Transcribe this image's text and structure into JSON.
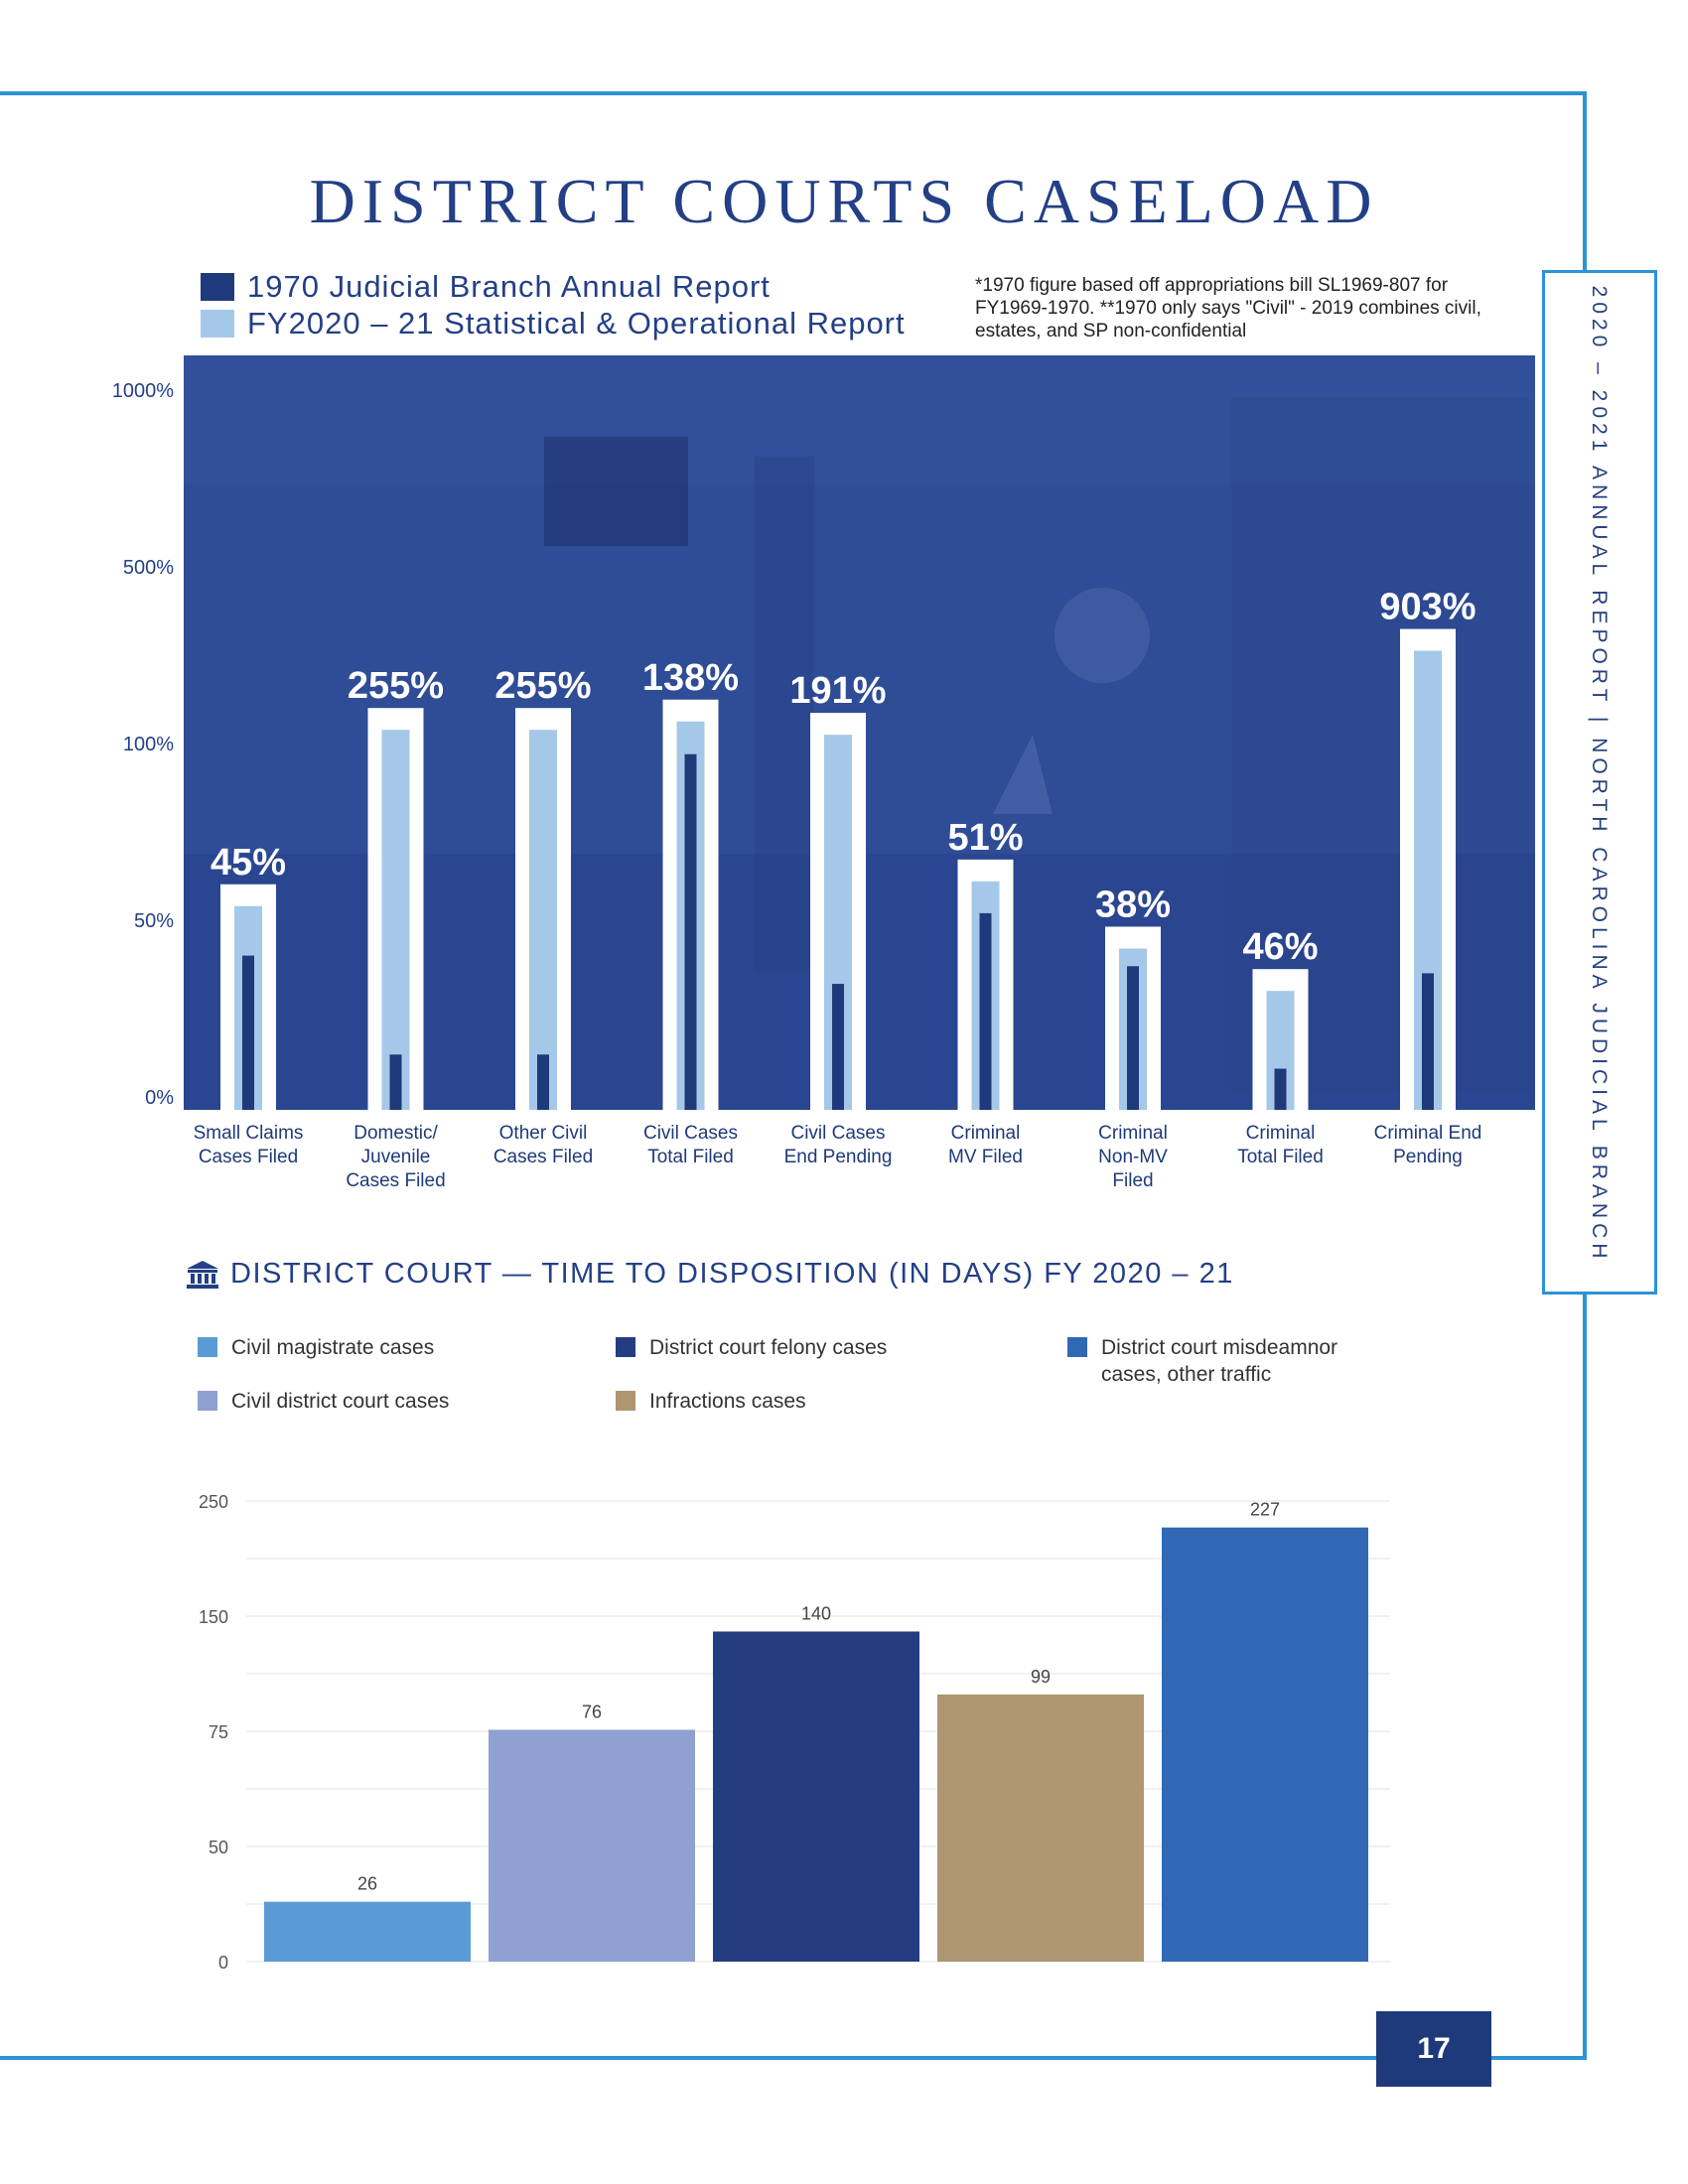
{
  "page_title": "DISTRICT COURTS CASELOAD",
  "side_banner": "2020 – 2021 ANNUAL REPORT | NORTH CAROLINA JUDICIAL BRANCH",
  "page_number": "17",
  "colors": {
    "frame": "#2b93d6",
    "navy": "#233f86",
    "bar1970": "#1f3a7a",
    "bar2021": "#a6c8e8",
    "photo_bg": "#2f4c96"
  },
  "chart1": {
    "legend": [
      {
        "label": "1970 Judicial Branch Annual Report",
        "color": "#1f3a7a"
      },
      {
        "label": "FY2020 – 21 Statistical & Operational Report",
        "color": "#a6c8e8"
      }
    ],
    "note": "*1970 figure based off appropriations bill SL1969-807 for FY1969-1970. **1970 only says \"Civil\" - 2019 combines civil, estates, and SP non-confidential"
  },
  "chart2": {
    "heading": "DISTRICT COURT — TIME TO DISPOSITION (IN DAYS) FY 2020 – 21",
    "heading_icon": "courthouse-icon",
    "legend": [
      {
        "label": "Civil magistrate cases",
        "color": "#5b9bd5"
      },
      {
        "label": "District court felony cases",
        "color": "#233d80"
      },
      {
        "label": "District court misdeamnor cases, other traffic",
        "color": "#3068b3"
      },
      {
        "label": "Civil district court cases",
        "color": "#8fa1d0"
      },
      {
        "label": "Infractions cases",
        "color": "#ad9670"
      }
    ]
  },
  "chart_data": [
    {
      "type": "bar",
      "ytick_labels": [
        "0%",
        "50%",
        "100%",
        "500%",
        "1000%"
      ],
      "categories": [
        "Small Claims Cases Filed",
        "Domestic/ Juvenile Cases Filed",
        "Other Civil Cases Filed",
        "Civil Cases Total Filed",
        "Civil Cases End Pending",
        "Criminal MV Filed",
        "Criminal Non-MV Filed",
        "Criminal Total Filed",
        "Criminal End Pending"
      ],
      "category_lines": [
        [
          "Small Claims",
          "Cases Filed"
        ],
        [
          "Domestic/",
          "Juvenile",
          "Cases Filed"
        ],
        [
          "Other Civil",
          "Cases Filed"
        ],
        [
          "Civil Cases",
          "Total Filed"
        ],
        [
          "Civil Cases",
          "End Pending"
        ],
        [
          "Criminal",
          "MV Filed"
        ],
        [
          "Criminal",
          "Non-MV",
          "Filed"
        ],
        [
          "Criminal",
          "Total Filed"
        ],
        [
          "Criminal End",
          "Pending"
        ]
      ],
      "change_labels": [
        "45%",
        "255%",
        "255%",
        "138%",
        "191%",
        "51%",
        "38%",
        "46%",
        "903%"
      ],
      "series": [
        {
          "name": "1970 Judicial Branch Annual Report",
          "values": [
            40,
            12,
            12,
            97,
            32,
            52,
            37,
            8,
            35
          ]
        },
        {
          "name": "FY2020 – 21 Statistical & Operational Report",
          "values": [
            54,
            131,
            131,
            150,
            120,
            61,
            42,
            30,
            310
          ]
        }
      ],
      "ylim": [
        0,
        1000
      ],
      "legend_position": "top-left"
    },
    {
      "type": "bar",
      "categories": [
        "Civil magistrate cases",
        "Civil district court cases",
        "District court felony cases",
        "Infractions cases",
        "District court misdeamnor cases, other traffic"
      ],
      "values": [
        26,
        76,
        140,
        99,
        227
      ],
      "colors": [
        "#5b9bd5",
        "#8fa1d0",
        "#233d80",
        "#ad9670",
        "#3068b3"
      ],
      "ytick_labels": [
        "0",
        "50",
        "75",
        "150",
        "250"
      ],
      "ylim": [
        0,
        250
      ],
      "grid": true
    }
  ]
}
